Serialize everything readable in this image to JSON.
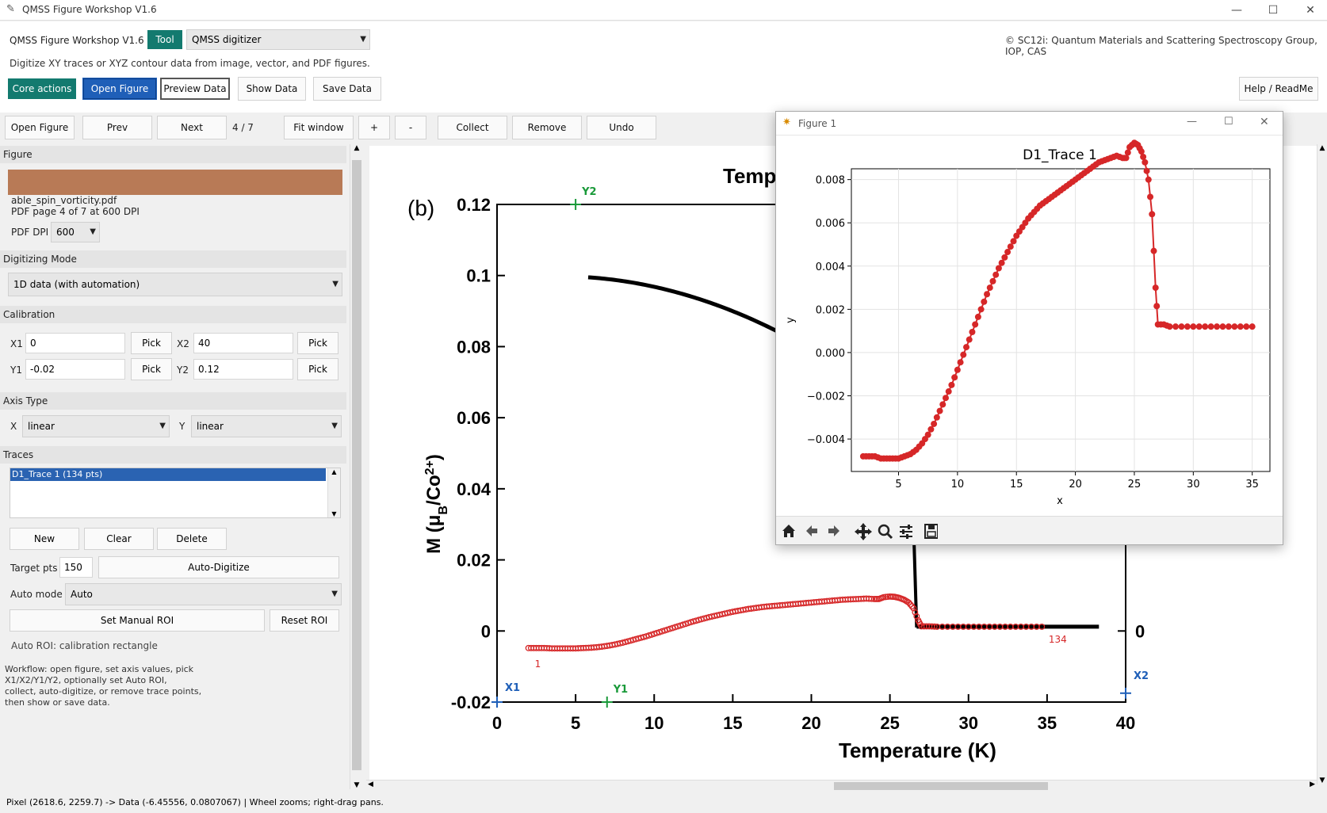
{
  "window": {
    "title": "QMSS Figure Workshop V1.6",
    "controls": [
      "—",
      "☐",
      "✕"
    ]
  },
  "header": {
    "app_name": "QMSS Figure Workshop V1.6",
    "tool_label": "Tool",
    "tool_value": "QMSS digitizer",
    "description": "Digitize XY traces or XYZ contour data from image, vector, and PDF figures.",
    "copyright": "© SC12i: Quantum Materials and Scattering Spectroscopy Group, IOP, CAS",
    "core_actions": "Core actions",
    "open_figure": "Open Figure",
    "preview_data": "Preview Data",
    "show_data": "Show Data",
    "save_data": "Save Data",
    "help": "Help / ReadMe"
  },
  "toolbar": {
    "open_figure": "Open Figure",
    "prev": "Prev",
    "next": "Next",
    "page": "4 / 7",
    "fit_window": "Fit window",
    "zoom_in": "+",
    "zoom_out": "-",
    "collect": "Collect",
    "remove": "Remove",
    "undo": "Undo"
  },
  "figure_panel": {
    "title": "Figure",
    "swatch_color": "#b87a56",
    "filename": "able_spin_vorticity.pdf",
    "page_info": "PDF page 4 of 7 at 600 DPI",
    "dpi_label": "PDF DPI",
    "dpi_value": "600"
  },
  "mode_panel": {
    "title": "Digitizing Mode",
    "value": "1D data (with automation)"
  },
  "calibration": {
    "title": "Calibration",
    "x1_label": "X1",
    "x1_value": "0",
    "x2_label": "X2",
    "x2_value": "40",
    "y1_label": "Y1",
    "y1_value": "-0.02",
    "y2_label": "Y2",
    "y2_value": "0.12",
    "pick": "Pick"
  },
  "axis_type": {
    "title": "Axis Type",
    "x_label": "X",
    "x_value": "linear",
    "y_label": "Y",
    "y_value": "linear"
  },
  "traces": {
    "title": "Traces",
    "items": [
      "D1_Trace 1 (134 pts)"
    ],
    "new": "New",
    "clear": "Clear",
    "delete": "Delete",
    "target_label": "Target pts",
    "target_value": "150",
    "auto_digitize": "Auto-Digitize",
    "auto_mode_label": "Auto mode",
    "auto_mode_value": "Auto",
    "set_roi": "Set Manual ROI",
    "reset_roi": "Reset ROI",
    "roi_status": "Auto ROI: calibration rectangle"
  },
  "workflow": [
    "Workflow: open figure, set axis values, pick",
    "X1/X2/Y1/Y2, optionally set Auto ROI,",
    "collect, auto-digitize, or remove trace points,",
    "then show or save data."
  ],
  "status": "Pixel (2618.6, 2259.7) -> Data (-6.45556, 0.0807067) | Wheel zooms; right-drag pans.",
  "source_plot": {
    "panel_label": "(b)",
    "top_title_partial": "Temp",
    "xlabel": "Temperature (K)",
    "ylabel": "M (μ",
    "ylabel_sub": "B",
    "ylabel_mid": "/Co",
    "ylabel_sup": "2+",
    "ylabel_end": ")",
    "xticks": [
      "0",
      "5",
      "10",
      "15",
      "20",
      "25",
      "30",
      "35",
      "40"
    ],
    "yticks": [
      "-0.02",
      "0",
      "0.02",
      "0.04",
      "0.06",
      "0.08",
      "0.1",
      "0.12"
    ],
    "right_tick": "0",
    "markers": {
      "x1": "X1",
      "x2": "X2",
      "y1": "Y1",
      "y2": "Y2"
    },
    "first_index": "1",
    "last_index": "134",
    "colors": {
      "trace": "#d62728",
      "black": "#000000",
      "calib_x": "#1f5fb8",
      "calib_y": "#1a9a3a"
    }
  },
  "figure1": {
    "window_title": "Figure 1",
    "plot_title": "D1_Trace 1",
    "xlabel": "x",
    "ylabel": "y",
    "toolbar_icons": [
      "home-icon",
      "back-icon",
      "forward-icon",
      "pan-icon",
      "zoom-icon",
      "configure-icon",
      "save-icon"
    ]
  },
  "chart_data": {
    "type": "line",
    "title": "D1_Trace 1",
    "xlabel": "x",
    "ylabel": "y",
    "xlim": [
      1,
      36.5
    ],
    "ylim": [
      -0.0055,
      0.0085
    ],
    "xticks": [
      5,
      10,
      15,
      20,
      25,
      30,
      35
    ],
    "yticks": [
      -0.004,
      -0.002,
      0.0,
      0.002,
      0.004,
      0.006,
      0.008
    ],
    "ytick_labels": [
      "−0.004",
      "−0.002",
      "0.000",
      "0.002",
      "0.004",
      "0.006",
      "0.008"
    ],
    "grid": true,
    "series": [
      {
        "color": "#d62728",
        "x": [
          2.0,
          2.5,
          3.0,
          3.5,
          4.0,
          4.5,
          5.0,
          5.5,
          6.0,
          6.5,
          7.0,
          7.5,
          8.0,
          8.5,
          9.0,
          9.5,
          10.0,
          10.5,
          11.0,
          11.5,
          12.0,
          12.5,
          13.0,
          13.5,
          14.0,
          14.5,
          15.0,
          15.5,
          16.0,
          16.5,
          17.0,
          17.5,
          18.0,
          18.5,
          19.0,
          19.5,
          20.0,
          20.5,
          21.0,
          21.5,
          22.0,
          22.5,
          23.0,
          23.5,
          24.0,
          24.3,
          24.6,
          25.0,
          25.3,
          25.6,
          25.9,
          26.2,
          26.5,
          26.8,
          27.0,
          27.5,
          28.0,
          29.0,
          30.0,
          31.0,
          32.0,
          33.0,
          34.0,
          35.0
        ],
        "y": [
          -0.0048,
          -0.0048,
          -0.0048,
          -0.0049,
          -0.0049,
          -0.0049,
          -0.0049,
          -0.0048,
          -0.0047,
          -0.0045,
          -0.0042,
          -0.0038,
          -0.0033,
          -0.0027,
          -0.0021,
          -0.0015,
          -0.0008,
          -0.0001,
          0.0006,
          0.0013,
          0.002,
          0.0027,
          0.0033,
          0.0039,
          0.0044,
          0.0049,
          0.0054,
          0.0058,
          0.0062,
          0.0065,
          0.0068,
          0.007,
          0.0072,
          0.0074,
          0.0076,
          0.0078,
          0.008,
          0.0082,
          0.0084,
          0.0086,
          0.0088,
          0.0089,
          0.009,
          0.0091,
          0.009,
          0.009,
          0.0095,
          0.0097,
          0.0096,
          0.0093,
          0.0088,
          0.008,
          0.0064,
          0.003,
          0.0013,
          0.0013,
          0.0012,
          0.0012,
          0.0012,
          0.0012,
          0.0012,
          0.0012,
          0.0012,
          0.0012
        ]
      }
    ]
  }
}
